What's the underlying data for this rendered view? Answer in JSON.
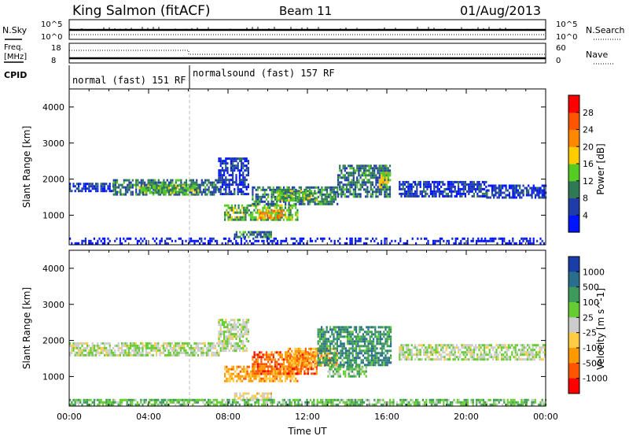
{
  "header": {
    "title": "King Salmon (fitACF)",
    "beam": "Beam 11",
    "date": "01/Aug/2013"
  },
  "noise_panel": {
    "left_label": "N.Sky",
    "right_label": "N.Search",
    "left_ticks": [
      "10^5",
      "10^0"
    ],
    "right_ticks": [
      "10^5",
      "10^0"
    ]
  },
  "freq_panel": {
    "left_label_1": "Freq.",
    "left_label_2": "[MHz]",
    "right_label": "Nave",
    "left_ticks": [
      "18",
      "8"
    ],
    "right_ticks": [
      "60",
      "0"
    ]
  },
  "cpid": {
    "label": "CPID",
    "segments": [
      {
        "name": "normal (fast) 151 RF",
        "start_hour": 0,
        "end_hour": 6
      },
      {
        "name": "normalsound (fast) 157 RF",
        "start_hour": 6,
        "end_hour": 24
      }
    ]
  },
  "chart_data": [
    {
      "type": "heatmap",
      "title": "",
      "parameter": "Power",
      "xlabel": "",
      "ylabel": "Slant Range [km]",
      "xlim_hours": [
        0,
        24
      ],
      "ylim": [
        180,
        4500
      ],
      "y_ticks": [
        "1000",
        "2000",
        "3000",
        "4000"
      ],
      "colorbar_label": "Power [dB]",
      "colorbar_ticks": [
        "4",
        "8",
        "12",
        "16",
        "20",
        "24",
        "28"
      ],
      "colorbar_colors": [
        "#0014ff",
        "#1f3ca8",
        "#2f7a55",
        "#55cc22",
        "#ffcc00",
        "#ff8800",
        "#ff5500",
        "#ff0000"
      ],
      "regions": [
        {
          "x0": 0.0,
          "x1": 2.2,
          "y0": 1650,
          "y1": 1900,
          "level": 1
        },
        {
          "x0": 2.2,
          "x1": 7.5,
          "y0": 1600,
          "y1": 2000,
          "level": 2
        },
        {
          "x0": 3.5,
          "x1": 6.5,
          "y0": 1650,
          "y1": 1850,
          "level": 3
        },
        {
          "x0": 7.5,
          "x1": 9.0,
          "y0": 1600,
          "y1": 2600,
          "level": 1
        },
        {
          "x0": 7.8,
          "x1": 11.5,
          "y0": 850,
          "y1": 1300,
          "level": 3
        },
        {
          "x0": 9.5,
          "x1": 10.8,
          "y0": 950,
          "y1": 1150,
          "level": 5
        },
        {
          "x0": 9.2,
          "x1": 13.5,
          "y0": 1300,
          "y1": 1800,
          "level": 2
        },
        {
          "x0": 10.5,
          "x1": 12.5,
          "y0": 1400,
          "y1": 1700,
          "level": 3
        },
        {
          "x0": 8.3,
          "x1": 10.2,
          "y0": 400,
          "y1": 560,
          "level": 2
        },
        {
          "x0": 13.5,
          "x1": 16.2,
          "y0": 1500,
          "y1": 2400,
          "level": 2
        },
        {
          "x0": 15.6,
          "x1": 16.2,
          "y0": 1800,
          "y1": 2200,
          "level": 4
        },
        {
          "x0": 16.6,
          "x1": 21.0,
          "y0": 1500,
          "y1": 1950,
          "level": 1
        },
        {
          "x0": 21.0,
          "x1": 24.0,
          "y0": 1500,
          "y1": 1850,
          "level": 1
        },
        {
          "x0": 0.0,
          "x1": 24.0,
          "y0": 200,
          "y1": 380,
          "level": 0
        }
      ]
    },
    {
      "type": "heatmap",
      "title": "",
      "parameter": "Velocity",
      "xlabel": "Time UT",
      "ylabel": "Slant Range [km]",
      "xlim_hours": [
        0,
        24
      ],
      "ylim": [
        180,
        4500
      ],
      "x_ticks": [
        "00:00",
        "04:00",
        "08:00",
        "12:00",
        "16:00",
        "20:00",
        "00:00"
      ],
      "y_ticks": [
        "1000",
        "2000",
        "3000",
        "4000"
      ],
      "colorbar_label": "Velocity [m s^-1]",
      "colorbar_ticks": [
        "1000",
        "500",
        "100",
        "25",
        "-25",
        "-100",
        "-500",
        "-1000"
      ],
      "colorbar_colors": [
        "#1a3ea8",
        "#2a6e8e",
        "#3c9a5a",
        "#66cc33",
        "#cccccc",
        "#ffcc44",
        "#ff9900",
        "#ff5500",
        "#ff0000"
      ],
      "regions": [
        {
          "x0": 0.0,
          "x1": 7.5,
          "y0": 1600,
          "y1": 1950,
          "level": 4
        },
        {
          "x0": 7.5,
          "x1": 9.0,
          "y0": 1700,
          "y1": 2600,
          "level": 4
        },
        {
          "x0": 7.8,
          "x1": 11.5,
          "y0": 850,
          "y1": 1300,
          "level": 6
        },
        {
          "x0": 9.2,
          "x1": 12.5,
          "y0": 1100,
          "y1": 1700,
          "level": 7
        },
        {
          "x0": 11.0,
          "x1": 13.5,
          "y0": 1300,
          "y1": 1800,
          "level": 6
        },
        {
          "x0": 12.5,
          "x1": 16.2,
          "y0": 1300,
          "y1": 2400,
          "level": 2
        },
        {
          "x0": 13.0,
          "x1": 15.0,
          "y0": 1000,
          "y1": 1300,
          "level": 3
        },
        {
          "x0": 8.3,
          "x1": 10.2,
          "y0": 400,
          "y1": 560,
          "level": 5
        },
        {
          "x0": 16.6,
          "x1": 24.0,
          "y0": 1500,
          "y1": 1900,
          "level": 4
        },
        {
          "x0": 0.0,
          "x1": 24.0,
          "y0": 200,
          "y1": 380,
          "level": 3
        }
      ]
    }
  ]
}
